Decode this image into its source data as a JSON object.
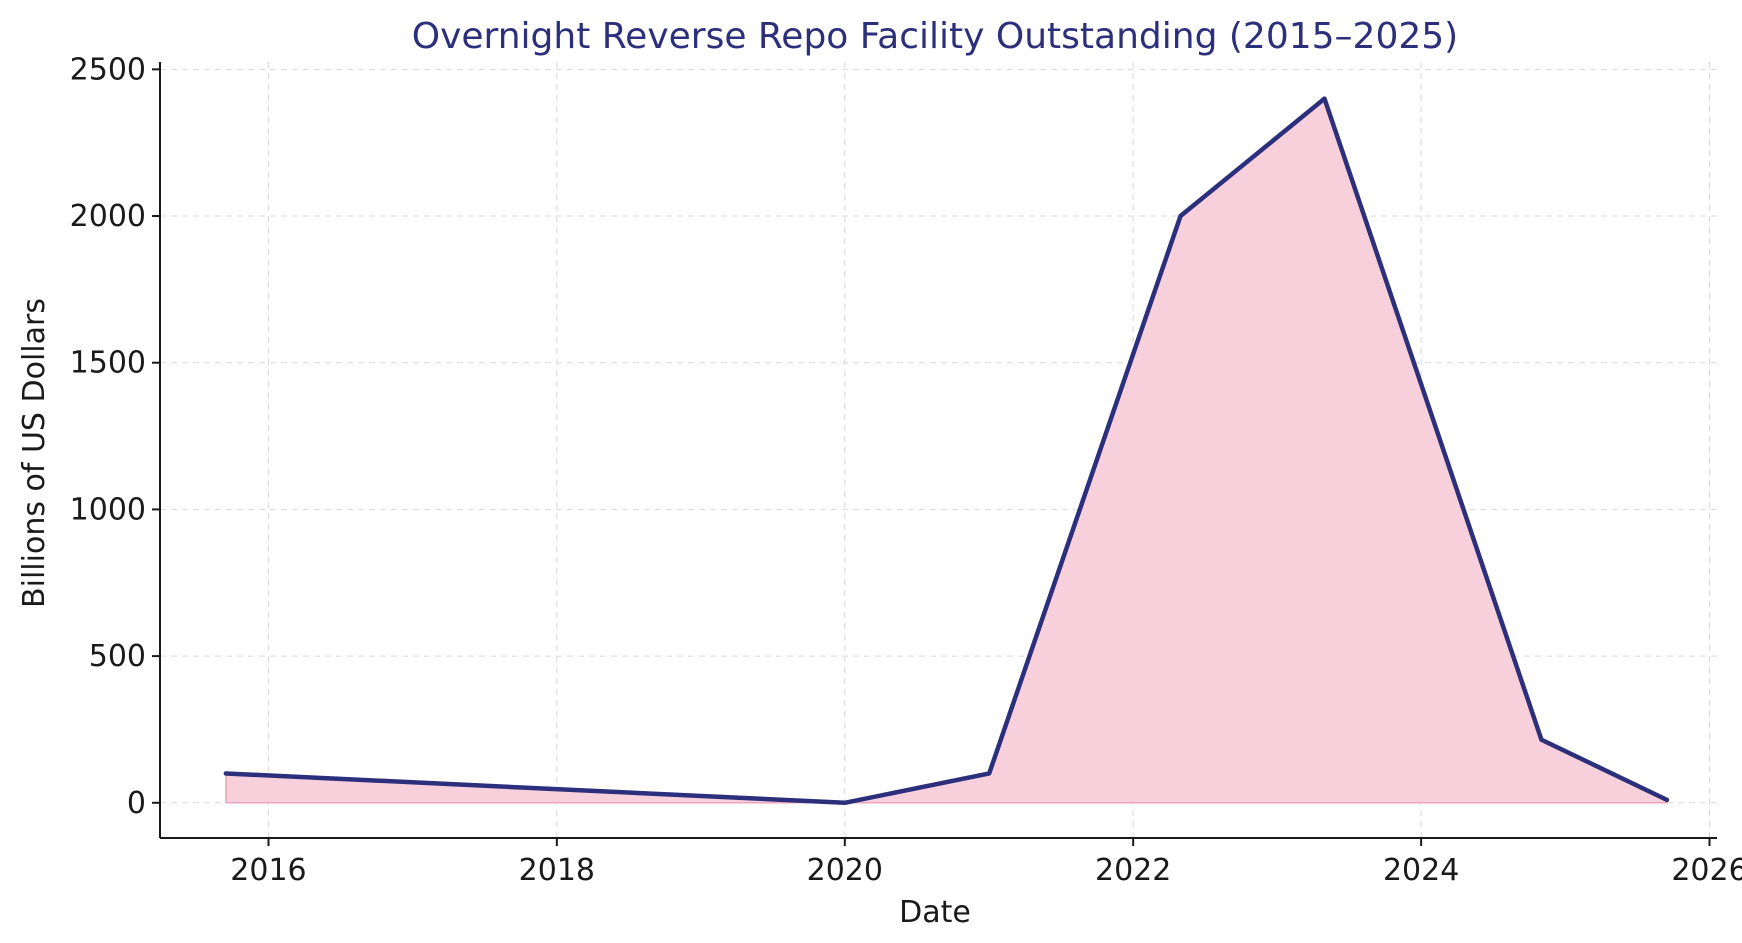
{
  "chart_data": {
    "type": "area",
    "title": "Overnight Reverse Repo Facility Outstanding (2015–2025)",
    "xlabel": "Date",
    "ylabel": "Billions of US Dollars",
    "x_scale": "date",
    "xlim": [
      "2015-04-01",
      "2026-01-20"
    ],
    "ylim": [
      -120,
      2525
    ],
    "x_ticks": [
      {
        "date": "2016-01-01",
        "label": "2016"
      },
      {
        "date": "2018-01-01",
        "label": "2018"
      },
      {
        "date": "2020-01-01",
        "label": "2020"
      },
      {
        "date": "2022-01-01",
        "label": "2022"
      },
      {
        "date": "2024-01-01",
        "label": "2024"
      },
      {
        "date": "2026-01-01",
        "label": "2026"
      }
    ],
    "y_ticks": [
      0,
      500,
      1000,
      1500,
      2000,
      2500
    ],
    "grid": true,
    "legend": "none",
    "series": [
      {
        "x": [
          "2015-09-15",
          "2020-01-01",
          "2021-01-01",
          "2022-05-01",
          "2023-05-01",
          "2024-11-01",
          "2025-09-15"
        ],
        "y": [
          100,
          0,
          100,
          2000,
          2400,
          215,
          10
        ]
      }
    ],
    "colors": {
      "line": "#2c2f7c",
      "fill": "#f7d0dc",
      "fill_edge": "#eba6bd",
      "title": "#2c2f7c"
    }
  }
}
